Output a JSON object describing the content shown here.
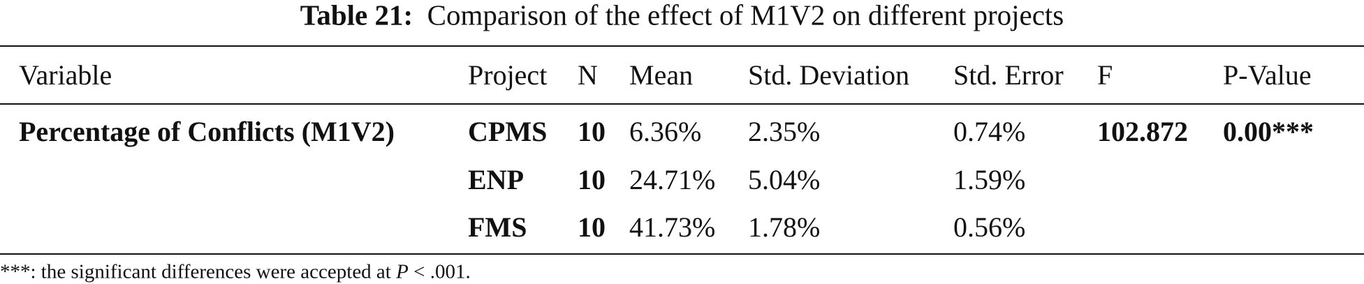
{
  "caption": {
    "label": "Table 21:",
    "text": "Comparison of the effect of M1V2 on different projects"
  },
  "table": {
    "header": [
      "Variable",
      "Project",
      "N",
      "Mean",
      "Std. Deviation",
      "Std. Error",
      "F",
      "P-Value"
    ],
    "rows": [
      {
        "variable": "Percentage of Conflicts (M1V2)",
        "project": "CPMS",
        "n": "10",
        "mean": "6.36%",
        "sd": "2.35%",
        "se": "0.74%",
        "f": "102.872",
        "p": "0.00***"
      },
      {
        "project": "ENP",
        "n": "10",
        "mean": "24.71%",
        "sd": "5.04%",
        "se": "1.59%"
      },
      {
        "project": "FMS",
        "n": "10",
        "mean": "41.73%",
        "sd": "1.78%",
        "se": "0.56%"
      }
    ]
  },
  "footnote": {
    "prefix": "***: the significant differences were accepted at ",
    "italic": "P",
    "suffix": " < .001."
  }
}
